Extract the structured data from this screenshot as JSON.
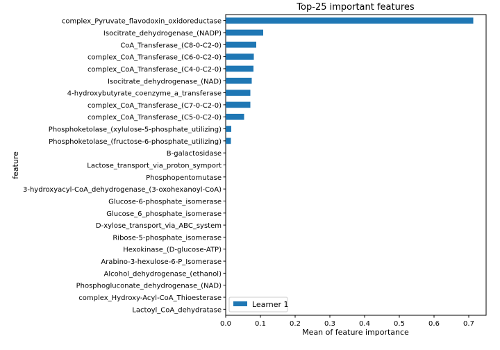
{
  "chart_data": {
    "type": "bar",
    "orientation": "horizontal",
    "title": "Top-25 important features",
    "xlabel": "Mean of feature importance",
    "ylabel": "feature",
    "xlim": [
      0,
      0.75
    ],
    "xticks": [
      "0.0",
      "0.1",
      "0.2",
      "0.3",
      "0.4",
      "0.5",
      "0.6",
      "0.7"
    ],
    "grid": false,
    "legend": {
      "position": "lower-left",
      "entries": [
        "Learner 1"
      ]
    },
    "categories": [
      "complex_Pyruvate_flavodoxin_oxidoreductase",
      "Isocitrate_dehydrogenase_(NADP)",
      "CoA_Transferase_(C8-0-C2-0)",
      "complex_CoA_Transferase_(C6-0-C2-0)",
      "complex_CoA_Transferase_(C4-0-C2-0)",
      "Isocitrate_dehydrogenase_(NAD)",
      "4-hydroxybutyrate_coenzyme_a_transferase",
      "complex_CoA_Transferase_(C7-0-C2-0)",
      "complex_CoA_Transferase_(C5-0-C2-0)",
      "Phosphoketolase_(xylulose-5-phosphate_utilizing)",
      "Phosphoketolase_(fructose-6-phosphate_utilizing)",
      "B-galactosidase",
      "Lactose_transport_via_proton_symport",
      "Phosphopentomutase",
      "3-hydroxyacyl-CoA_dehydrogenase_(3-oxohexanoyl-CoA)",
      "Glucose-6-phosphate_isomerase",
      "Glucose_6_phosphate_isomerase",
      "D-xylose_transport_via_ABC_system",
      "Ribose-5-phosphate_isomerase",
      "Hexokinase_(D-glucose-ATP)",
      "Arabino-3-hexulose-6-P_Isomerase",
      "Alcohol_dehydrogenase_(ethanol)",
      "Phosphogluconate_dehydrogenase_(NAD)",
      "complex_Hydroxy-Acyl-CoA_Thioesterase",
      "Lactoyl_CoA_dehydratase"
    ],
    "series": [
      {
        "name": "Learner 1",
        "color": "#1f77b4",
        "values": [
          0.713,
          0.108,
          0.088,
          0.081,
          0.08,
          0.075,
          0.071,
          0.071,
          0.053,
          0.016,
          0.015,
          0.0,
          0.0,
          0.0,
          0.0,
          0.0,
          0.0,
          0.0,
          0.0,
          0.0,
          0.0,
          0.0,
          0.0,
          0.0,
          0.0
        ]
      }
    ]
  }
}
